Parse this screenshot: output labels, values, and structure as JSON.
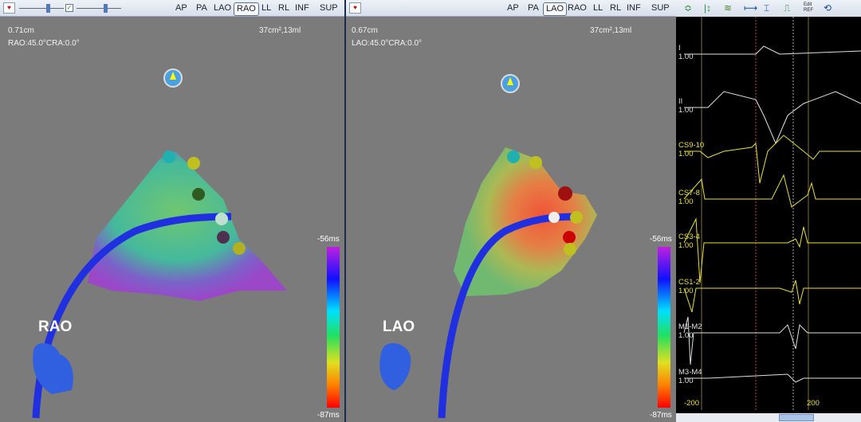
{
  "views": [
    "AP",
    "PA",
    "LAO",
    "RAO",
    "LL",
    "RL",
    "INF",
    "SUP"
  ],
  "left": {
    "selected_view": "RAO",
    "distance": "0.71cm",
    "angle": "RAO:45.0°CRA:0.0°",
    "area_volume": "37cm²,13ml",
    "label": "RAO",
    "scale_max": "-56ms",
    "scale_min": "-87ms"
  },
  "middle": {
    "selected_view": "LAO",
    "distance": "0.67cm",
    "angle": "LAO:45.0°CRA:0.0°",
    "area_volume": "37cm²,13ml",
    "label": "LAO",
    "scale_max": "-56ms",
    "scale_min": "-87ms"
  },
  "ecg": {
    "toolbar": [
      {
        "icon": "filter-icon",
        "color": "#2a8a3a"
      },
      {
        "icon": "gain-icon",
        "color": "#2a8a3a"
      },
      {
        "icon": "channels-icon",
        "color": "#4a8a2a"
      },
      {
        "icon": "horizontal-measure-icon",
        "color": "#1a4aa0"
      },
      {
        "icon": "vertical-measure-icon",
        "color": "#1a4aa0"
      },
      {
        "icon": "pulse-icon",
        "color": "#2a8a3a"
      },
      {
        "icon": "edit-ref-icon",
        "text": "Edit REF"
      },
      {
        "icon": "loop-icon",
        "color": "#1a4aa0"
      }
    ],
    "channels": [
      {
        "name": "I",
        "gain": "1.00",
        "color": "#e0e0e0"
      },
      {
        "name": "II",
        "gain": "1.00",
        "color": "#e0e0e0"
      },
      {
        "name": "CS9-10",
        "gain": "1.00",
        "color": "#e8e040"
      },
      {
        "name": "CS7-8",
        "gain": "1.00",
        "color": "#e8e040"
      },
      {
        "name": "CS3-4",
        "gain": "1.00",
        "color": "#e8e040"
      },
      {
        "name": "CS1-2",
        "gain": "1.00",
        "color": "#e8e040"
      },
      {
        "name": "M1-M2",
        "gain": "1.00",
        "color": "#e0e0e0"
      },
      {
        "name": "M3-M4",
        "gain": "1.00",
        "color": "#e0e0e0"
      }
    ],
    "time_min": "-200",
    "time_max": "200"
  }
}
